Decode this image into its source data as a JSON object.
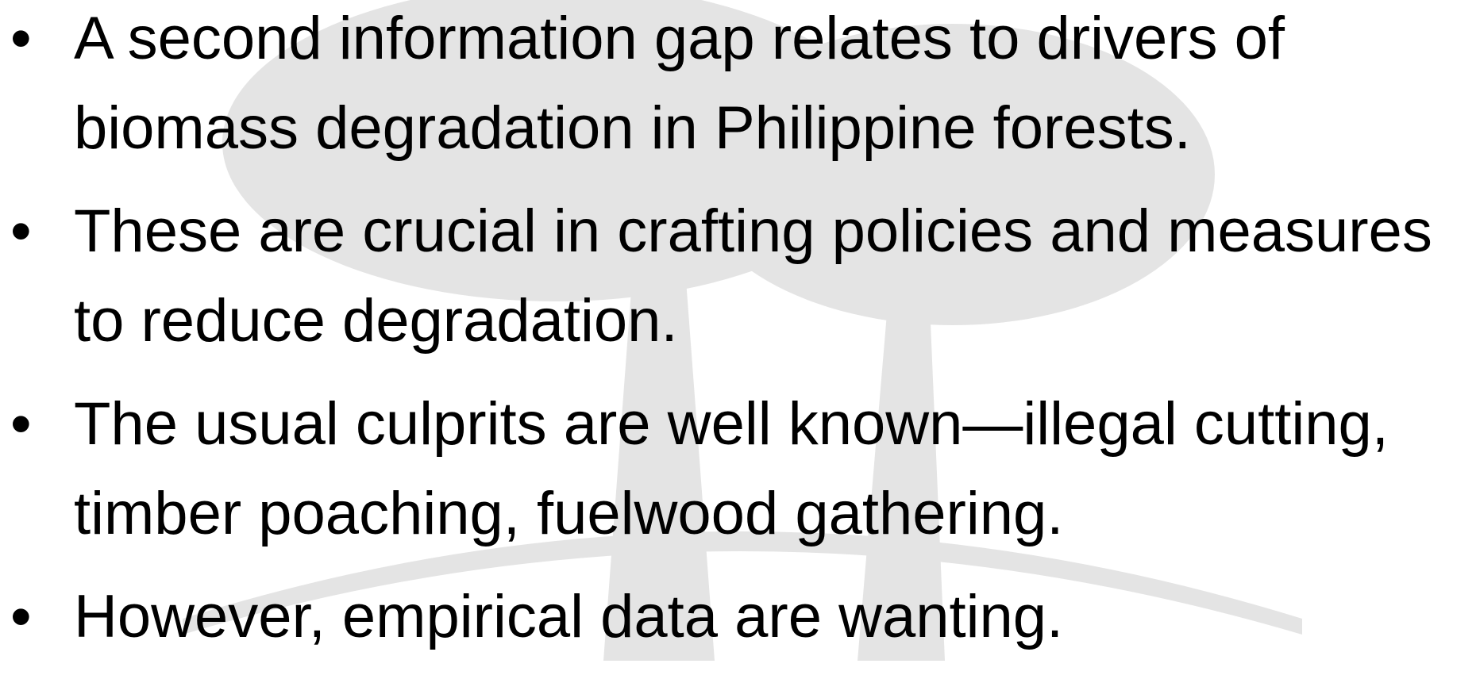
{
  "bullets": [
    "A second information gap relates to drivers of biomass degradation in Philippine forests.",
    "These are crucial in crafting policies and measures to reduce degradation.",
    "The usual culprits are well known—illegal cutting, timber poaching, fuelwood gathering.",
    "However, empirical data are wanting."
  ]
}
